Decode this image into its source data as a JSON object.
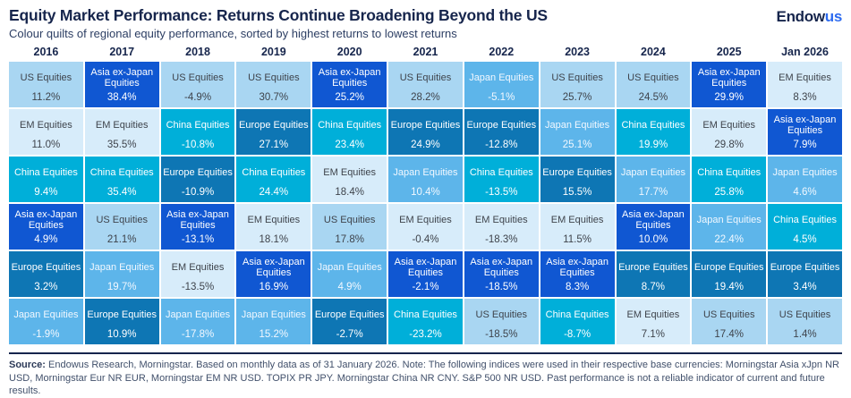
{
  "header": {
    "title": "Equity Market Performance: Returns Continue Broadening Beyond the US",
    "subtitle": "Colour quilts of regional equity performance, sorted by highest returns to lowest returns",
    "logo": {
      "part1": "Endow",
      "part2": "us",
      "navy": "#16254c",
      "blue": "#2d6bf0"
    }
  },
  "asset_styles": {
    "US Equities": {
      "bg": "#a9d6f2",
      "text": "#3e434b"
    },
    "EM Equities": {
      "bg": "#d7ecfa",
      "text": "#3e434b"
    },
    "Japan Equities": {
      "bg": "#5db5ea",
      "text": "#f2f8ff"
    },
    "China Equities": {
      "bg": "#00afd9",
      "text": "#ffffff"
    },
    "Europe Equities": {
      "bg": "#0e76b4",
      "text": "#ffffff"
    },
    "Asia ex-Japan Equities": {
      "bg": "#1057d2",
      "text": "#ffffff"
    }
  },
  "chart_data": {
    "type": "heatmap",
    "title": "Equity Market Performance: Returns Continue Broadening Beyond the US",
    "subtitle": "Colour quilts of regional equity performance, sorted by highest returns to lowest returns",
    "categories": [
      "2016",
      "2017",
      "2018",
      "2019",
      "2020",
      "2021",
      "2022",
      "2023",
      "2024",
      "2025",
      "Jan 2026"
    ],
    "value_format": "percent, one decimal",
    "layout": "each column ranks regional equity returns from highest (top) to lowest (bottom)",
    "columns": [
      {
        "year": "2016",
        "ranked": [
          {
            "asset": "US Equities",
            "value": 11.2
          },
          {
            "asset": "EM Equities",
            "value": 11.0
          },
          {
            "asset": "China Equities",
            "value": 9.4
          },
          {
            "asset": "Asia ex-Japan Equities",
            "value": 4.9
          },
          {
            "asset": "Europe Equities",
            "value": 3.2
          },
          {
            "asset": "Japan Equities",
            "value": -1.9
          }
        ]
      },
      {
        "year": "2017",
        "ranked": [
          {
            "asset": "Asia ex-Japan Equities",
            "value": 38.4
          },
          {
            "asset": "EM Equities",
            "value": 35.5
          },
          {
            "asset": "China Equities",
            "value": 35.4
          },
          {
            "asset": "US Equities",
            "value": 21.1
          },
          {
            "asset": "Japan Equities",
            "value": 19.7
          },
          {
            "asset": "Europe Equities",
            "value": 10.9
          }
        ]
      },
      {
        "year": "2018",
        "ranked": [
          {
            "asset": "US Equities",
            "value": -4.9
          },
          {
            "asset": "China Equities",
            "value": -10.8
          },
          {
            "asset": "Europe Equities",
            "value": -10.9
          },
          {
            "asset": "Asia ex-Japan Equities",
            "value": -13.1
          },
          {
            "asset": "EM Equities",
            "value": -13.5
          },
          {
            "asset": "Japan Equities",
            "value": -17.8
          }
        ]
      },
      {
        "year": "2019",
        "ranked": [
          {
            "asset": "US Equities",
            "value": 30.7
          },
          {
            "asset": "Europe Equities",
            "value": 27.1
          },
          {
            "asset": "China Equities",
            "value": 24.4
          },
          {
            "asset": "EM Equities",
            "value": 18.1
          },
          {
            "asset": "Asia ex-Japan Equities",
            "value": 16.9
          },
          {
            "asset": "Japan Equities",
            "value": 15.2
          }
        ]
      },
      {
        "year": "2020",
        "ranked": [
          {
            "asset": "Asia ex-Japan Equities",
            "value": 25.2
          },
          {
            "asset": "China Equities",
            "value": 23.4
          },
          {
            "asset": "EM Equities",
            "value": 18.4
          },
          {
            "asset": "US Equities",
            "value": 17.8
          },
          {
            "asset": "Japan Equities",
            "value": 4.9
          },
          {
            "asset": "Europe Equities",
            "value": -2.7
          }
        ]
      },
      {
        "year": "2021",
        "ranked": [
          {
            "asset": "US Equities",
            "value": 28.2
          },
          {
            "asset": "Europe Equities",
            "value": 24.9
          },
          {
            "asset": "Japan Equities",
            "value": 10.4
          },
          {
            "asset": "EM Equities",
            "value": -0.4
          },
          {
            "asset": "Asia ex-Japan Equities",
            "value": -2.1
          },
          {
            "asset": "China Equities",
            "value": -23.2
          }
        ]
      },
      {
        "year": "2022",
        "ranked": [
          {
            "asset": "Japan Equities",
            "value": -5.1
          },
          {
            "asset": "Europe Equities",
            "value": -12.8
          },
          {
            "asset": "China Equities",
            "value": -13.5
          },
          {
            "asset": "EM Equities",
            "value": -18.3
          },
          {
            "asset": "Asia ex-Japan Equities",
            "value": -18.5
          },
          {
            "asset": "US Equities",
            "value": -18.5
          }
        ]
      },
      {
        "year": "2023",
        "ranked": [
          {
            "asset": "US Equities",
            "value": 25.7
          },
          {
            "asset": "Japan Equities",
            "value": 25.1
          },
          {
            "asset": "Europe Equities",
            "value": 15.5
          },
          {
            "asset": "EM Equities",
            "value": 11.5
          },
          {
            "asset": "Asia ex-Japan Equities",
            "value": 8.3
          },
          {
            "asset": "China Equities",
            "value": -8.7
          }
        ]
      },
      {
        "year": "2024",
        "ranked": [
          {
            "asset": "US Equities",
            "value": 24.5
          },
          {
            "asset": "China Equities",
            "value": 19.9
          },
          {
            "asset": "Japan Equities",
            "value": 17.7
          },
          {
            "asset": "Asia ex-Japan Equities",
            "value": 10.0
          },
          {
            "asset": "Europe Equities",
            "value": 8.7
          },
          {
            "asset": "EM Equities",
            "value": 7.1
          }
        ]
      },
      {
        "year": "2025",
        "ranked": [
          {
            "asset": "Asia ex-Japan Equities",
            "value": 29.9
          },
          {
            "asset": "EM Equities",
            "value": 29.8
          },
          {
            "asset": "China Equities",
            "value": 25.8
          },
          {
            "asset": "Japan Equities",
            "value": 22.4
          },
          {
            "asset": "Europe Equities",
            "value": 19.4
          },
          {
            "asset": "US Equities",
            "value": 17.4
          }
        ]
      },
      {
        "year": "Jan 2026",
        "ranked": [
          {
            "asset": "EM Equities",
            "value": 8.3
          },
          {
            "asset": "Asia ex-Japan Equities",
            "value": 7.9
          },
          {
            "asset": "Japan Equities",
            "value": 4.6
          },
          {
            "asset": "China Equities",
            "value": 4.5
          },
          {
            "asset": "Europe Equities",
            "value": 3.4
          },
          {
            "asset": "US Equities",
            "value": 1.4
          }
        ]
      }
    ]
  },
  "footer": {
    "source_label": "Source:",
    "source_text": " Endowus Research, Morningstar. Based on monthly data as of 31 January 2026. Note: The following indices were used in their respective base currencies: Morningstar Asia xJpn NR USD, Morningstar Eur NR EUR, Morningstar EM NR USD. TOPIX PR JPY. Morningstar China NR CNY. S&P 500 NR USD. Past performance is not a reliable indicator of current and future results."
  }
}
